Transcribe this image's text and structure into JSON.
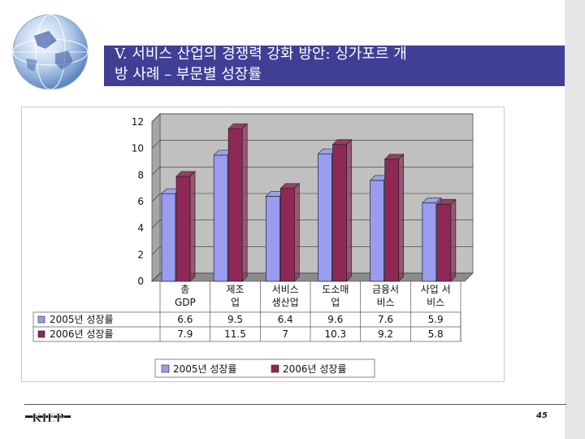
{
  "header": {
    "title_line1": "V. 서비스 산업의 경쟁력 강화 방안: 싱가포르 개",
    "title_line2": "방 사례 – 부문별 성장률"
  },
  "footer": {
    "logo_text": "KIEP",
    "page_number": "45"
  },
  "colors": {
    "title_bar": "#403f96",
    "series_2005": "#9a9cf2",
    "series_2006": "#8f2857",
    "plot_wall": "#c0c0c0"
  },
  "chart_data": {
    "type": "bar",
    "categories": [
      [
        "총",
        "GDP"
      ],
      [
        "제조",
        "업"
      ],
      [
        "서비스",
        "생산업"
      ],
      [
        "도소매",
        "업"
      ],
      [
        "금융서",
        "비스"
      ],
      [
        "사업 서",
        "비스"
      ]
    ],
    "series": [
      {
        "name": "2005년 성장률",
        "values": [
          6.6,
          9.5,
          6.4,
          9.6,
          7.6,
          5.9
        ],
        "labels": [
          "6.6",
          "9.5",
          "6.4",
          "9.6",
          "7.6",
          "5.9"
        ]
      },
      {
        "name": "2006년 성장률",
        "values": [
          7.9,
          11.5,
          7,
          10.3,
          9.2,
          5.8
        ],
        "labels": [
          "7.9",
          "11.5",
          "7",
          "10.3",
          "9.2",
          "5.8"
        ]
      }
    ],
    "ylim": [
      0,
      12
    ],
    "yticks": [
      "0",
      "2",
      "4",
      "6",
      "8",
      "10",
      "12"
    ],
    "grid": true,
    "legend_position": "bottom",
    "data_table": true
  }
}
